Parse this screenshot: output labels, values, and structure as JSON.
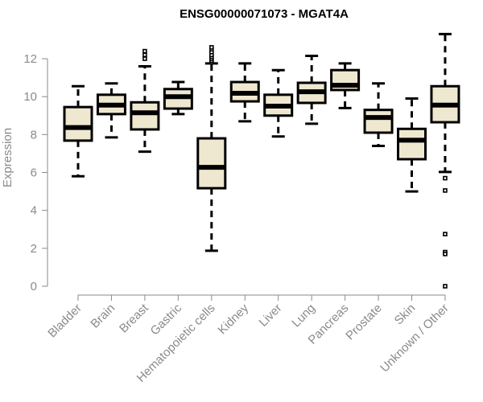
{
  "chart_data": {
    "type": "boxplot",
    "title": "ENSG00000071073 - MGAT4A",
    "xlabel": "",
    "ylabel": "Expression",
    "ylim": [
      0,
      13.4
    ],
    "yticks": [
      0,
      2,
      4,
      6,
      8,
      10,
      12
    ],
    "grid": false,
    "box_fill": "#efe8d0",
    "line_color": "#000000",
    "axis_color": "#8a8a8a",
    "categories": [
      "Bladder",
      "Brain",
      "Breast",
      "Gastric",
      "Hematopoietic cells",
      "Kidney",
      "Liver",
      "Lung",
      "Pancreas",
      "Prostate",
      "Skin",
      "Unknown / Other"
    ],
    "series": [
      {
        "name": "Bladder",
        "whisker_low": 5.8,
        "q1": 7.68,
        "median": 8.37,
        "q3": 9.45,
        "whisker_high": 10.55,
        "outliers": []
      },
      {
        "name": "Brain",
        "whisker_low": 7.85,
        "q1": 9.08,
        "median": 9.55,
        "q3": 10.1,
        "whisker_high": 10.7,
        "outliers": []
      },
      {
        "name": "Breast",
        "whisker_low": 7.1,
        "q1": 8.27,
        "median": 9.15,
        "q3": 9.7,
        "whisker_high": 11.6,
        "outliers": [
          12.0,
          12.2,
          12.4
        ]
      },
      {
        "name": "Gastric",
        "whisker_low": 9.08,
        "q1": 9.37,
        "median": 10.0,
        "q3": 10.4,
        "whisker_high": 10.77,
        "outliers": []
      },
      {
        "name": "Hematopoietic cells",
        "whisker_low": 1.87,
        "q1": 5.17,
        "median": 6.27,
        "q3": 7.8,
        "whisker_high": 11.75,
        "outliers": [
          11.82,
          11.9,
          12.0,
          12.1,
          12.2,
          12.35,
          12.5,
          12.6
        ]
      },
      {
        "name": "Kidney",
        "whisker_low": 8.7,
        "q1": 9.75,
        "median": 10.18,
        "q3": 10.77,
        "whisker_high": 11.75,
        "outliers": []
      },
      {
        "name": "Liver",
        "whisker_low": 7.9,
        "q1": 9.0,
        "median": 9.5,
        "q3": 10.1,
        "whisker_high": 11.4,
        "outliers": []
      },
      {
        "name": "Lung",
        "whisker_low": 8.57,
        "q1": 9.67,
        "median": 10.26,
        "q3": 10.73,
        "whisker_high": 12.15,
        "outliers": []
      },
      {
        "name": "Pancreas",
        "whisker_low": 9.4,
        "q1": 10.35,
        "median": 10.6,
        "q3": 11.4,
        "whisker_high": 11.75,
        "outliers": []
      },
      {
        "name": "Prostate",
        "whisker_low": 7.4,
        "q1": 8.1,
        "median": 8.9,
        "q3": 9.3,
        "whisker_high": 10.7,
        "outliers": []
      },
      {
        "name": "Skin",
        "whisker_low": 5.0,
        "q1": 6.7,
        "median": 7.7,
        "q3": 8.3,
        "whisker_high": 9.9,
        "outliers": []
      },
      {
        "name": "Unknown / Other",
        "whisker_low": 6.03,
        "q1": 8.65,
        "median": 9.55,
        "q3": 10.55,
        "whisker_high": 13.3,
        "outliers": [
          5.7,
          5.05,
          2.75,
          1.8,
          1.7,
          0.0
        ]
      }
    ]
  }
}
